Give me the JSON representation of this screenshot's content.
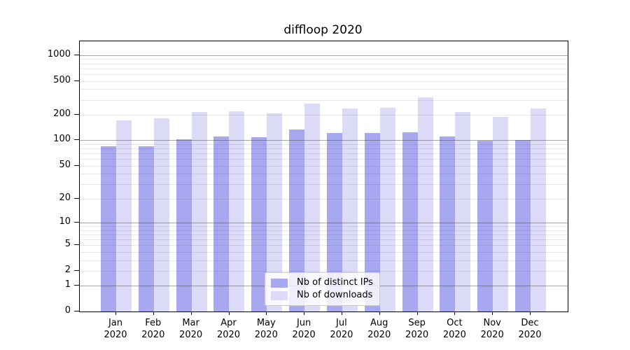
{
  "chart_data": {
    "type": "bar",
    "title": "diffloop 2020",
    "categories": [
      "Jan",
      "Feb",
      "Mar",
      "Apr",
      "May",
      "Jun",
      "Jul",
      "Aug",
      "Sep",
      "Oct",
      "Nov",
      "Dec"
    ],
    "year_label": "2020",
    "series": [
      {
        "name": "Nb of distinct IPs",
        "key": "distinct-ips",
        "color": "#a8a8f0",
        "values": [
          85,
          85,
          103,
          112,
          108,
          133,
          121,
          123,
          125,
          110,
          99,
          101
        ]
      },
      {
        "name": "Nb of downloads",
        "key": "downloads",
        "color": "#dcdcf8",
        "values": [
          173,
          182,
          214,
          218,
          207,
          270,
          237,
          242,
          324,
          215,
          188,
          239
        ]
      }
    ],
    "yscale": "log1p",
    "ylim": [
      0,
      1455
    ],
    "y_ticks": [
      0,
      1,
      2,
      5,
      10,
      20,
      50,
      100,
      200,
      500,
      1000
    ],
    "y_major_gridlines": [
      1,
      10,
      100,
      1000
    ],
    "y_minor_gridlines": [
      2,
      3,
      4,
      5,
      6,
      7,
      8,
      9,
      20,
      30,
      40,
      50,
      60,
      70,
      80,
      90,
      200,
      300,
      400,
      500,
      600,
      700,
      800,
      900
    ],
    "grid": true,
    "legend_position": "lower center",
    "colors": {
      "bar_distinct_ips": "#a8a8f0",
      "bar_downloads": "#dcdcf8",
      "major_grid": "#b0b0b0",
      "minor_grid": "#e8e8e8",
      "axis": "#000000",
      "background": "#ffffff"
    }
  }
}
